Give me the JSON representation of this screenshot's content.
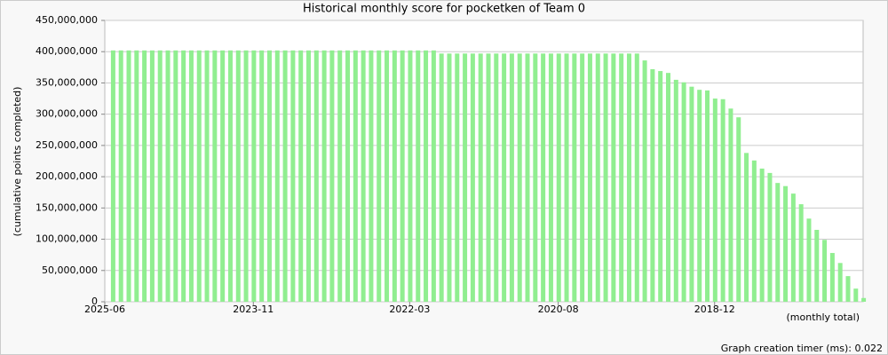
{
  "chart_data": {
    "type": "bar",
    "title": "Historical monthly score for pocketken of Team 0",
    "y_label": "(cumulative points completed)",
    "x_note": "(monthly total)",
    "footer": "Graph creation timer (ms): 0.022",
    "color": "#90ee90",
    "grid": true,
    "categories": [
      "2025-06",
      null,
      null,
      null,
      null,
      null,
      null,
      null,
      null,
      null,
      null,
      null,
      null,
      null,
      null,
      null,
      null,
      null,
      null,
      "2023-11",
      null,
      null,
      null,
      null,
      null,
      null,
      null,
      null,
      null,
      null,
      null,
      null,
      null,
      null,
      null,
      null,
      null,
      null,
      null,
      "2022-03",
      null,
      null,
      null,
      null,
      null,
      null,
      null,
      null,
      null,
      null,
      null,
      null,
      null,
      null,
      null,
      null,
      null,
      null,
      "2020-08",
      null,
      null,
      null,
      null,
      null,
      null,
      null,
      null,
      null,
      null,
      null,
      null,
      null,
      null,
      null,
      null,
      null,
      null,
      null,
      "2018-12",
      null,
      null,
      null,
      null,
      null,
      null,
      null,
      null,
      null,
      null,
      null,
      null,
      null,
      null,
      null,
      null,
      null,
      null
    ],
    "values": [
      402000000,
      402000000,
      402000000,
      402000000,
      402000000,
      402000000,
      402000000,
      402000000,
      402000000,
      402000000,
      402000000,
      402000000,
      402000000,
      402000000,
      402000000,
      402000000,
      402000000,
      402000000,
      402000000,
      402000000,
      402000000,
      402000000,
      402000000,
      402000000,
      402000000,
      402000000,
      402000000,
      402000000,
      402000000,
      402000000,
      402000000,
      402000000,
      402000000,
      402000000,
      402000000,
      402000000,
      402000000,
      402000000,
      402000000,
      402000000,
      402000000,
      402000000,
      397000000,
      397000000,
      397000000,
      397000000,
      397000000,
      397000000,
      397000000,
      397000000,
      397000000,
      397000000,
      397000000,
      397000000,
      397000000,
      397000000,
      397000000,
      397000000,
      397000000,
      397000000,
      397000000,
      397000000,
      397000000,
      397000000,
      397000000,
      397000000,
      397000000,
      397000000,
      386000000,
      372000000,
      369000000,
      366000000,
      355000000,
      351000000,
      344000000,
      339000000,
      338000000,
      325000000,
      324000000,
      309000000,
      295000000,
      238000000,
      226000000,
      213000000,
      206000000,
      190000000,
      185000000,
      173000000,
      156000000,
      133000000,
      115000000,
      99000000,
      78000000,
      62000000,
      41000000,
      21000000,
      6000000
    ],
    "ylim": [
      0,
      450000000
    ],
    "yticks": [
      0,
      {
        "value": 50000000,
        "label": "50,000,000"
      },
      {
        "value": 100000000,
        "label": "100,000,000"
      },
      {
        "value": 150000000,
        "label": "150,000,000"
      },
      {
        "value": 200000000,
        "label": "200,000,000"
      },
      {
        "value": 250000000,
        "label": "250,000,000"
      },
      {
        "value": 300000000,
        "label": "300,000,000"
      },
      {
        "value": 350000000,
        "label": "350,000,000"
      },
      {
        "value": 400000000,
        "label": "400,000,000"
      },
      {
        "value": 450000000,
        "label": "450,000,000"
      }
    ]
  }
}
